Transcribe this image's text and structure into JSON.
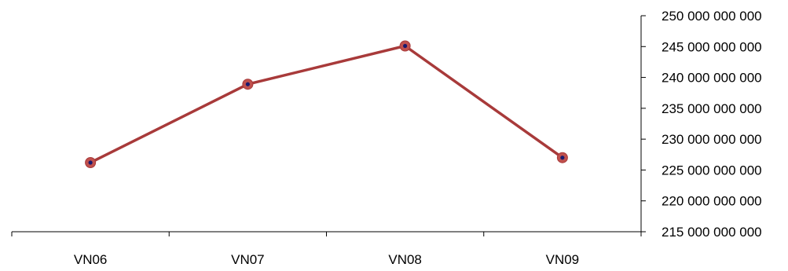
{
  "chart_data": {
    "type": "line",
    "title": "",
    "xlabel": "",
    "ylabel": "",
    "categories": [
      "VN06",
      "VN07",
      "VN08",
      "VN09"
    ],
    "series": [
      {
        "values": [
          226200000000,
          238900000000,
          245100000000,
          227000000000
        ]
      }
    ],
    "ylim": [
      215000000000,
      250000000000
    ],
    "yticks": [
      215000000000,
      220000000000,
      225000000000,
      230000000000,
      235000000000,
      240000000000,
      245000000000,
      250000000000
    ],
    "ytick_labels": [
      "215 000 000 000",
      "220 000 000 000",
      "225 000 000 000",
      "230 000 000 000",
      "235 000 000 000",
      "240 000 000 000",
      "245 000 000 000",
      "250 000 000 000"
    ],
    "y_axis_side": "right",
    "grid": false,
    "legend": "none",
    "colors": {
      "line": "#a83a3a",
      "marker_outer": "#c0504d",
      "marker_inner": "#1a1a6e",
      "axis": "#000000"
    }
  }
}
